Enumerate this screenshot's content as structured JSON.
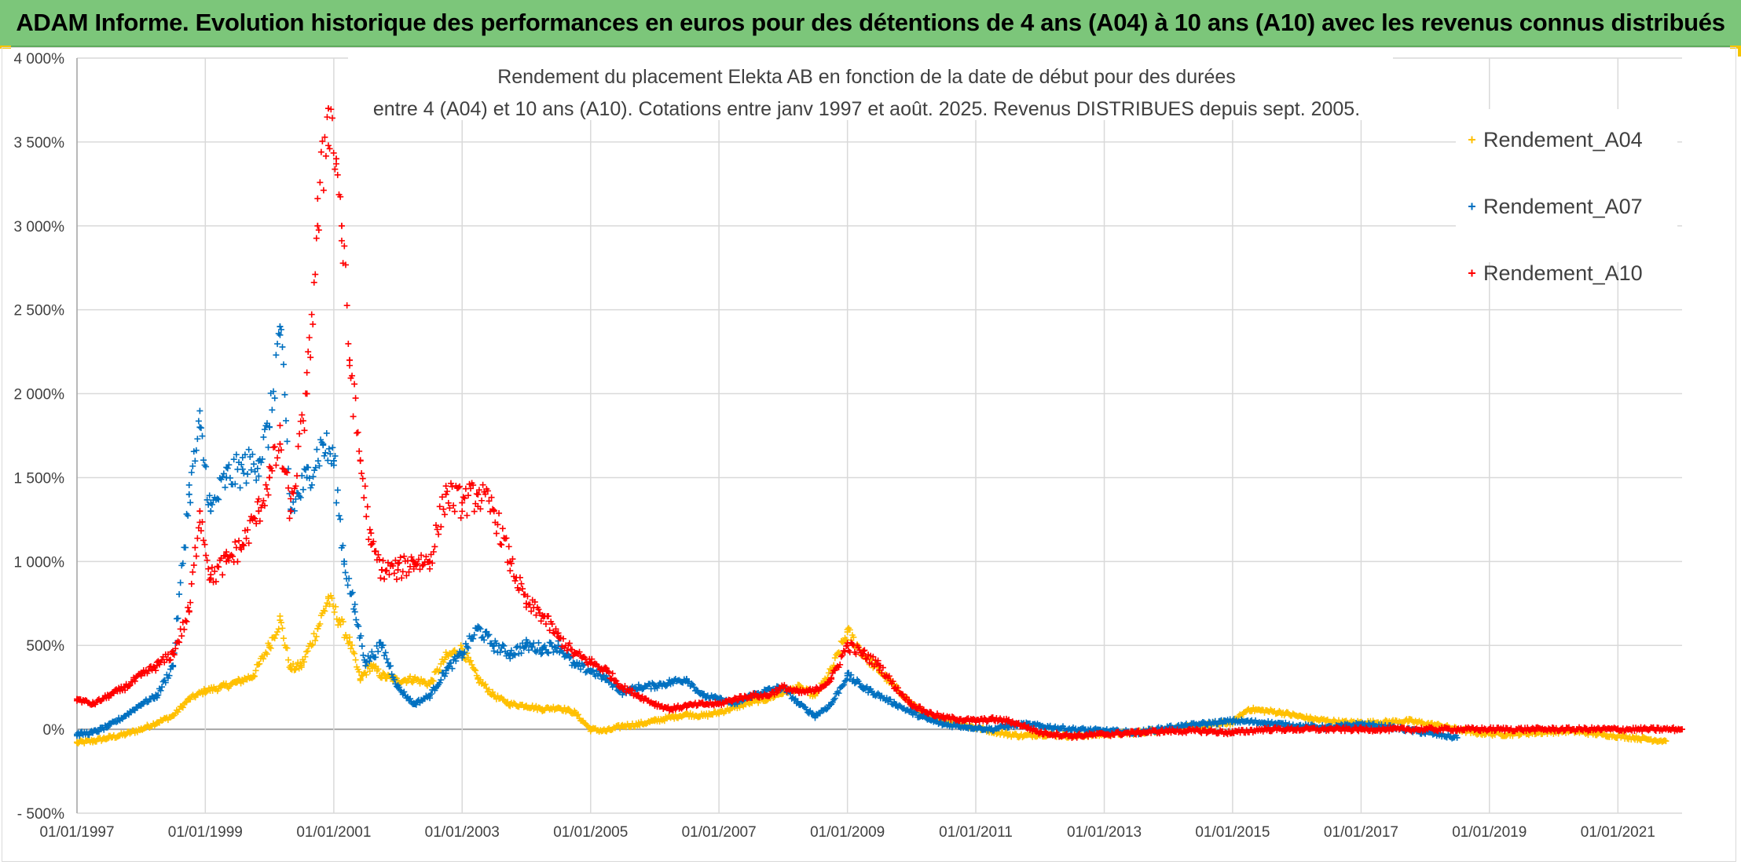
{
  "header": {
    "title": "ADAM Informe. Evolution historique des performances en euros pour des détentions de 4 ans (A04) à 10 ans (A10) avec les revenus connus distribués"
  },
  "colors": {
    "header_bg": "#7cc67a",
    "corner_accent": "#f5c400",
    "grid": "#d9d9d9",
    "zero_line": "#a6a6a6",
    "text": "#404040"
  },
  "chart_data": {
    "type": "scatter",
    "marker": "plus",
    "title_lines": [
      "Rendement du placement Elekta AB en fonction de la date de début pour des durées",
      "entre 4 (A04) et 10 ans (A10). Cotations entre janv 1997 et août. 2025. Revenus DISTRIBUES depuis sept. 2005."
    ],
    "xlim": [
      "1997-01-01",
      "2022-01-01"
    ],
    "ylim": [
      -500,
      4000
    ],
    "x_ticks": [
      "01/01/1997",
      "01/01/1999",
      "01/01/2001",
      "01/01/2003",
      "01/01/2005",
      "01/01/2007",
      "01/01/2009",
      "01/01/2011",
      "01/01/2013",
      "01/01/2015",
      "01/01/2017",
      "01/01/2019",
      "01/01/2021"
    ],
    "y_ticks": [
      {
        "value": -500,
        "label": "- 500%"
      },
      {
        "value": 0,
        "label": "0%"
      },
      {
        "value": 500,
        "label": "500%"
      },
      {
        "value": 1000,
        "label": "1 000%"
      },
      {
        "value": 1500,
        "label": "1 500%"
      },
      {
        "value": 2000,
        "label": "2 000%"
      },
      {
        "value": 2500,
        "label": "2 500%"
      },
      {
        "value": 3000,
        "label": "3 000%"
      },
      {
        "value": 3500,
        "label": "3 500%"
      },
      {
        "value": 4000,
        "label": "4 000%"
      }
    ],
    "grid": true,
    "legend_position": "top-right",
    "series": [
      {
        "name": "Rendement_A04",
        "color": "#ffc000",
        "points": [
          [
            "1997-01-01",
            -80
          ],
          [
            "1997-04-01",
            -70
          ],
          [
            "1997-07-01",
            -50
          ],
          [
            "1997-10-01",
            -30
          ],
          [
            "1998-01-01",
            0
          ],
          [
            "1998-04-01",
            40
          ],
          [
            "1998-07-01",
            80
          ],
          [
            "1998-10-01",
            180
          ],
          [
            "1999-01-01",
            230
          ],
          [
            "1999-04-01",
            250
          ],
          [
            "1999-07-01",
            280
          ],
          [
            "1999-10-01",
            320
          ],
          [
            "2000-01-01",
            500
          ],
          [
            "2000-03-01",
            650
          ],
          [
            "2000-05-01",
            360
          ],
          [
            "2000-07-01",
            380
          ],
          [
            "2000-10-01",
            600
          ],
          [
            "2000-12-01",
            780
          ],
          [
            "2001-02-01",
            650
          ],
          [
            "2001-04-01",
            520
          ],
          [
            "2001-06-01",
            300
          ],
          [
            "2001-08-01",
            380
          ],
          [
            "2001-10-01",
            320
          ],
          [
            "2002-01-01",
            290
          ],
          [
            "2002-04-01",
            300
          ],
          [
            "2002-07-01",
            270
          ],
          [
            "2002-10-01",
            430
          ],
          [
            "2003-01-01",
            480
          ],
          [
            "2003-04-01",
            300
          ],
          [
            "2003-07-01",
            200
          ],
          [
            "2003-10-01",
            150
          ],
          [
            "2004-01-01",
            140
          ],
          [
            "2004-04-01",
            120
          ],
          [
            "2004-07-01",
            130
          ],
          [
            "2004-10-01",
            100
          ],
          [
            "2005-01-01",
            0
          ],
          [
            "2005-04-01",
            -10
          ],
          [
            "2005-07-01",
            20
          ],
          [
            "2005-10-01",
            30
          ],
          [
            "2006-01-01",
            50
          ],
          [
            "2006-04-01",
            70
          ],
          [
            "2006-07-01",
            90
          ],
          [
            "2006-10-01",
            80
          ],
          [
            "2007-01-01",
            100
          ],
          [
            "2007-04-01",
            130
          ],
          [
            "2007-07-01",
            160
          ],
          [
            "2007-10-01",
            180
          ],
          [
            "2008-01-01",
            220
          ],
          [
            "2008-04-01",
            250
          ],
          [
            "2008-07-01",
            200
          ],
          [
            "2008-10-01",
            350
          ],
          [
            "2009-01-01",
            580
          ],
          [
            "2009-04-01",
            450
          ],
          [
            "2009-07-01",
            350
          ],
          [
            "2009-10-01",
            250
          ],
          [
            "2010-01-01",
            150
          ],
          [
            "2010-04-01",
            80
          ],
          [
            "2010-07-01",
            50
          ],
          [
            "2010-10-01",
            30
          ],
          [
            "2011-01-01",
            10
          ],
          [
            "2011-04-01",
            -10
          ],
          [
            "2011-07-01",
            -30
          ],
          [
            "2011-10-01",
            -40
          ],
          [
            "2012-01-01",
            -30
          ],
          [
            "2012-07-01",
            -40
          ],
          [
            "2013-01-01",
            -30
          ],
          [
            "2013-07-01",
            -20
          ],
          [
            "2014-01-01",
            0
          ],
          [
            "2014-07-01",
            20
          ],
          [
            "2015-01-01",
            40
          ],
          [
            "2015-04-01",
            120
          ],
          [
            "2015-10-01",
            100
          ],
          [
            "2016-04-01",
            60
          ],
          [
            "2016-10-01",
            40
          ],
          [
            "2017-04-01",
            40
          ],
          [
            "2017-10-01",
            50
          ],
          [
            "2018-04-01",
            20
          ],
          [
            "2018-10-01",
            -20
          ],
          [
            "2019-04-01",
            -30
          ],
          [
            "2019-10-01",
            -20
          ],
          [
            "2020-04-01",
            -10
          ],
          [
            "2020-10-01",
            -30
          ],
          [
            "2021-04-01",
            -50
          ],
          [
            "2021-10-01",
            -70
          ]
        ]
      },
      {
        "name": "Rendement_A07",
        "color": "#0070c0",
        "points": [
          [
            "1997-01-01",
            -30
          ],
          [
            "1997-04-01",
            -20
          ],
          [
            "1997-07-01",
            20
          ],
          [
            "1997-10-01",
            80
          ],
          [
            "1998-01-01",
            150
          ],
          [
            "1998-04-01",
            200
          ],
          [
            "1998-07-01",
            380
          ],
          [
            "1998-10-01",
            1400
          ],
          [
            "1998-12-01",
            1800
          ],
          [
            "1999-02-01",
            1300
          ],
          [
            "1999-05-01",
            1500
          ],
          [
            "1999-08-01",
            1550
          ],
          [
            "1999-11-01",
            1600
          ],
          [
            "2000-01-01",
            1800
          ],
          [
            "2000-03-01",
            2400
          ],
          [
            "2000-05-01",
            1300
          ],
          [
            "2000-08-01",
            1500
          ],
          [
            "2000-11-01",
            1700
          ],
          [
            "2001-01-01",
            1600
          ],
          [
            "2001-03-01",
            1000
          ],
          [
            "2001-05-01",
            700
          ],
          [
            "2001-07-01",
            400
          ],
          [
            "2001-10-01",
            500
          ],
          [
            "2002-01-01",
            250
          ],
          [
            "2002-04-01",
            150
          ],
          [
            "2002-07-01",
            200
          ],
          [
            "2002-10-01",
            350
          ],
          [
            "2003-01-01",
            450
          ],
          [
            "2003-04-01",
            600
          ],
          [
            "2003-07-01",
            500
          ],
          [
            "2003-10-01",
            450
          ],
          [
            "2004-01-01",
            500
          ],
          [
            "2004-04-01",
            480
          ],
          [
            "2004-07-01",
            500
          ],
          [
            "2004-10-01",
            380
          ],
          [
            "2005-01-01",
            350
          ],
          [
            "2005-04-01",
            300
          ],
          [
            "2005-07-01",
            220
          ],
          [
            "2005-10-01",
            250
          ],
          [
            "2006-01-01",
            260
          ],
          [
            "2006-04-01",
            280
          ],
          [
            "2006-07-01",
            300
          ],
          [
            "2006-10-01",
            200
          ],
          [
            "2007-01-01",
            180
          ],
          [
            "2007-04-01",
            150
          ],
          [
            "2007-07-01",
            200
          ],
          [
            "2007-10-01",
            230
          ],
          [
            "2008-01-01",
            250
          ],
          [
            "2008-04-01",
            150
          ],
          [
            "2008-07-01",
            80
          ],
          [
            "2008-10-01",
            150
          ],
          [
            "2009-01-01",
            320
          ],
          [
            "2009-04-01",
            250
          ],
          [
            "2009-07-01",
            200
          ],
          [
            "2009-10-01",
            150
          ],
          [
            "2010-01-01",
            100
          ],
          [
            "2010-04-01",
            60
          ],
          [
            "2010-07-01",
            30
          ],
          [
            "2010-10-01",
            20
          ],
          [
            "2011-01-01",
            10
          ],
          [
            "2011-04-01",
            0
          ],
          [
            "2011-07-01",
            20
          ],
          [
            "2011-10-01",
            30
          ],
          [
            "2012-01-01",
            20
          ],
          [
            "2012-07-01",
            0
          ],
          [
            "2013-01-01",
            -10
          ],
          [
            "2013-07-01",
            -20
          ],
          [
            "2014-01-01",
            10
          ],
          [
            "2014-07-01",
            30
          ],
          [
            "2015-01-01",
            50
          ],
          [
            "2015-07-01",
            40
          ],
          [
            "2016-01-01",
            20
          ],
          [
            "2016-07-01",
            10
          ],
          [
            "2017-01-01",
            30
          ],
          [
            "2017-07-01",
            10
          ],
          [
            "2018-01-01",
            -20
          ],
          [
            "2018-07-01",
            -50
          ]
        ]
      },
      {
        "name": "Rendement_A10",
        "color": "#ff0000",
        "points": [
          [
            "1997-01-01",
            180
          ],
          [
            "1997-04-01",
            150
          ],
          [
            "1997-07-01",
            200
          ],
          [
            "1997-10-01",
            250
          ],
          [
            "1998-01-01",
            320
          ],
          [
            "1998-04-01",
            380
          ],
          [
            "1998-07-01",
            450
          ],
          [
            "1998-10-01",
            700
          ],
          [
            "1998-12-01",
            1300
          ],
          [
            "1999-02-01",
            900
          ],
          [
            "1999-05-01",
            1000
          ],
          [
            "1999-08-01",
            1100
          ],
          [
            "1999-11-01",
            1300
          ],
          [
            "2000-01-01",
            1500
          ],
          [
            "2000-03-01",
            1700
          ],
          [
            "2000-05-01",
            1300
          ],
          [
            "2000-08-01",
            2000
          ],
          [
            "2000-10-01",
            3000
          ],
          [
            "2000-12-01",
            3700
          ],
          [
            "2001-01-15",
            3400
          ],
          [
            "2001-02-15",
            3000
          ],
          [
            "2001-04-01",
            2200
          ],
          [
            "2001-06-01",
            1600
          ],
          [
            "2001-08-01",
            1100
          ],
          [
            "2001-10-01",
            950
          ],
          [
            "2002-01-01",
            950
          ],
          [
            "2002-04-01",
            1000
          ],
          [
            "2002-07-01",
            1000
          ],
          [
            "2002-10-01",
            1400
          ],
          [
            "2003-01-01",
            1350
          ],
          [
            "2003-04-01",
            1400
          ],
          [
            "2003-07-01",
            1300
          ],
          [
            "2003-10-01",
            1000
          ],
          [
            "2004-01-01",
            750
          ],
          [
            "2004-04-01",
            680
          ],
          [
            "2004-07-01",
            550
          ],
          [
            "2004-10-01",
            450
          ],
          [
            "2005-01-01",
            400
          ],
          [
            "2005-04-01",
            350
          ],
          [
            "2005-07-01",
            250
          ],
          [
            "2005-10-01",
            200
          ],
          [
            "2006-01-01",
            150
          ],
          [
            "2006-04-01",
            120
          ],
          [
            "2006-07-01",
            140
          ],
          [
            "2006-10-01",
            150
          ],
          [
            "2007-01-01",
            150
          ],
          [
            "2007-04-01",
            180
          ],
          [
            "2007-07-01",
            200
          ],
          [
            "2007-10-01",
            200
          ],
          [
            "2008-01-01",
            250
          ],
          [
            "2008-04-01",
            220
          ],
          [
            "2008-07-01",
            230
          ],
          [
            "2008-10-01",
            300
          ],
          [
            "2009-01-01",
            500
          ],
          [
            "2009-04-01",
            450
          ],
          [
            "2009-07-01",
            380
          ],
          [
            "2009-10-01",
            250
          ],
          [
            "2010-01-01",
            150
          ],
          [
            "2010-04-01",
            100
          ],
          [
            "2010-07-01",
            70
          ],
          [
            "2010-10-01",
            60
          ],
          [
            "2011-01-01",
            50
          ],
          [
            "2011-04-01",
            60
          ],
          [
            "2011-07-01",
            50
          ],
          [
            "2011-10-01",
            20
          ],
          [
            "2012-01-01",
            -20
          ],
          [
            "2012-07-01",
            -40
          ],
          [
            "2013-01-01",
            -30
          ],
          [
            "2013-07-01",
            -20
          ],
          [
            "2014-01-01",
            -10
          ],
          [
            "2014-07-01",
            -10
          ],
          [
            "2015-01-01",
            -20
          ],
          [
            "2015-07-01",
            0
          ],
          [
            "2016-01-01",
            0
          ],
          [
            "2016-07-01",
            0
          ],
          [
            "2017-01-01",
            0
          ],
          [
            "2017-07-01",
            0
          ],
          [
            "2018-01-01",
            0
          ],
          [
            "2018-07-01",
            0
          ],
          [
            "2019-01-01",
            0
          ],
          [
            "2019-07-01",
            0
          ],
          [
            "2020-01-01",
            0
          ],
          [
            "2020-07-01",
            0
          ],
          [
            "2021-01-01",
            0
          ],
          [
            "2021-07-01",
            0
          ],
          [
            "2022-01-01",
            0
          ]
        ]
      }
    ]
  }
}
